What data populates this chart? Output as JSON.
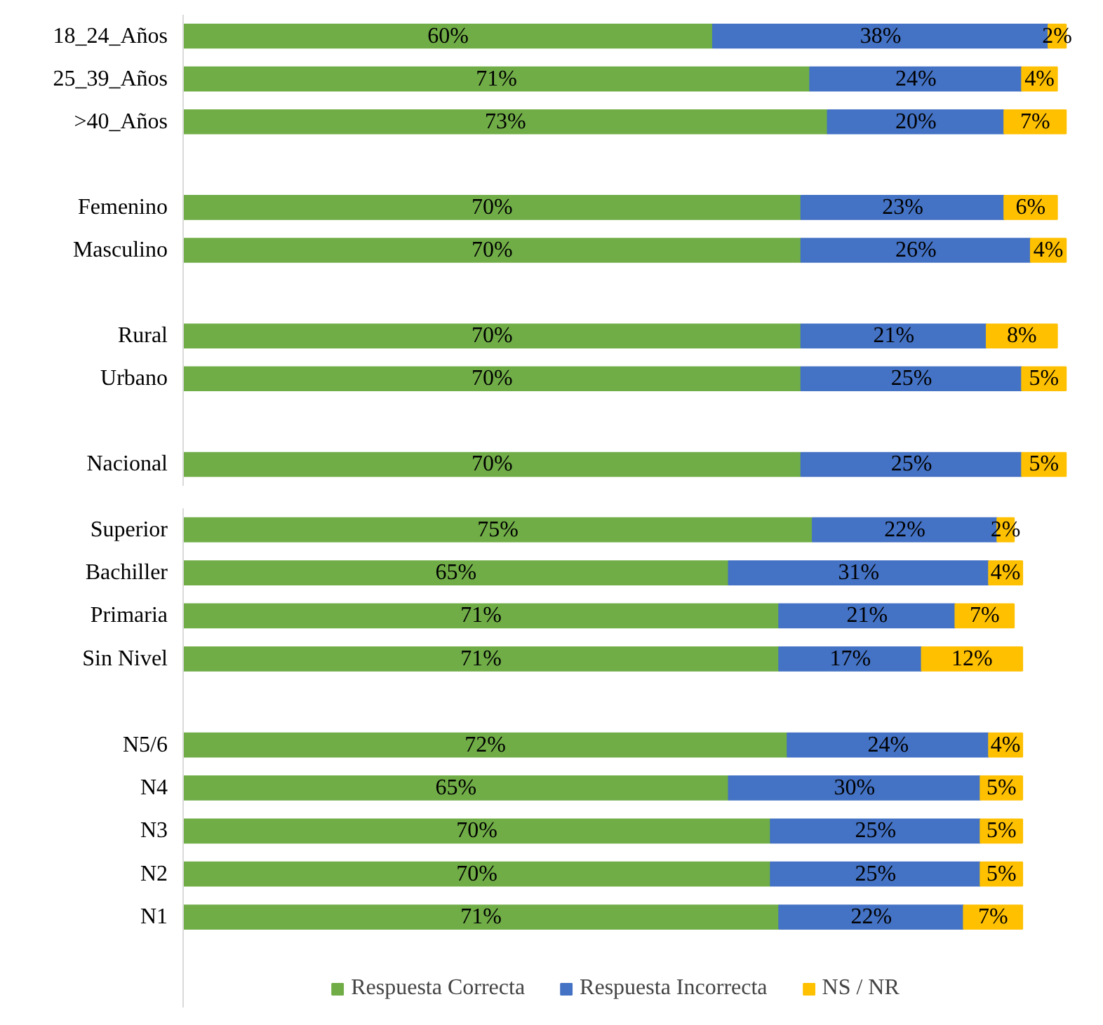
{
  "chart_data": [
    {
      "type": "bar",
      "orientation": "horizontal",
      "stacked": true,
      "grid": false,
      "legend": false,
      "tick_labels": "y",
      "categories": [
        "18_24_Años",
        "25_39_Años",
        ">40_Años",
        null,
        "Femenino",
        "Masculino",
        null,
        "Rural",
        "Urbano",
        null,
        "Nacional"
      ],
      "series": [
        {
          "color": "#70ad47",
          "values": [
            60,
            71,
            73,
            null,
            70,
            70,
            null,
            70,
            70,
            null,
            70
          ],
          "value_labels": [
            "60%",
            "71%",
            "73%",
            null,
            "70%",
            "70%",
            null,
            "70%",
            "70%",
            null,
            "70%"
          ]
        },
        {
          "color": "#4472c4",
          "values": [
            38,
            24,
            20,
            null,
            23,
            26,
            null,
            21,
            25,
            null,
            25
          ],
          "value_labels": [
            "38%",
            "24%",
            "20%",
            null,
            "23%",
            "26%",
            null,
            "21%",
            "25%",
            null,
            "25%"
          ]
        },
        {
          "color": "#ffc000",
          "values": [
            2,
            4,
            7,
            null,
            6,
            4,
            null,
            8,
            5,
            null,
            5
          ],
          "value_labels": [
            "2%",
            "4%",
            "7%",
            null,
            "6%",
            "4%",
            null,
            "8%",
            "5%",
            null,
            "5%"
          ]
        }
      ]
    },
    {
      "type": "bar",
      "orientation": "horizontal",
      "stacked": true,
      "grid": false,
      "legend": "bottom",
      "tick_labels": "y",
      "categories": [
        "Superior",
        "Bachiller",
        "Primaria",
        "Sin Nivel",
        null,
        "N5/6",
        "N4",
        "N3",
        "N2",
        "N1"
      ],
      "series": [
        {
          "name": "Respuesta Correcta",
          "color": "#70ad47",
          "values": [
            75,
            65,
            71,
            71,
            null,
            72,
            65,
            70,
            70,
            71
          ],
          "value_labels": [
            "75%",
            "65%",
            "71%",
            "71%",
            null,
            "72%",
            "65%",
            "70%",
            "70%",
            "71%"
          ]
        },
        {
          "name": "Respuesta Incorrecta",
          "color": "#4472c4",
          "values": [
            22,
            31,
            21,
            17,
            null,
            24,
            30,
            25,
            25,
            22
          ],
          "value_labels": [
            "22%",
            "31%",
            "21%",
            "17%",
            null,
            "24%",
            "30%",
            "25%",
            "25%",
            "22%"
          ]
        },
        {
          "name": "NS / NR",
          "color": "#ffc000",
          "values": [
            2,
            4,
            7,
            12,
            null,
            4,
            5,
            5,
            5,
            7
          ],
          "value_labels": [
            "2%",
            "4%",
            "7%",
            "12%",
            null,
            "4%",
            "5%",
            "5%",
            "5%",
            "7%"
          ]
        }
      ]
    }
  ]
}
